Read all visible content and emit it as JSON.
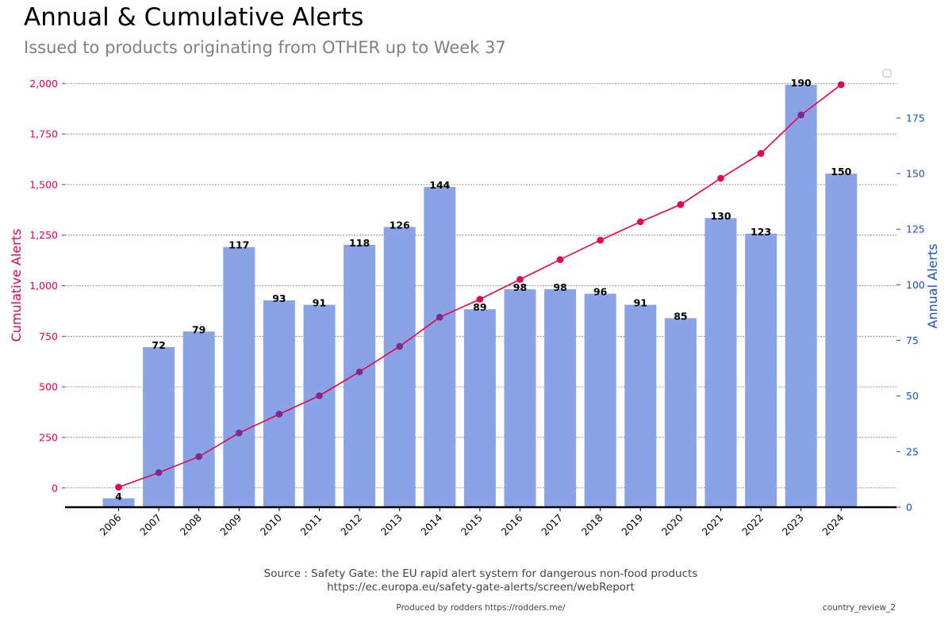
{
  "header": {
    "title": "Annual & Cumulative Alerts",
    "subtitle": "Issued to products originating from OTHER up to Week 37"
  },
  "footer": {
    "source_line1": "Source : Safety Gate: the EU rapid alert system for dangerous non-food products",
    "source_line2": "https://ec.europa.eu/safety-gate-alerts/screen/webReport",
    "produced_by": "Produced by rodders https://rodders.me/",
    "report_id": "country_review_2"
  },
  "colors": {
    "bar": "#8aa2e6",
    "cumulative": "#e8004c",
    "cumulative_early": "#7b2a8f",
    "annual_axis": "#1a4fc4",
    "grid": "#777777"
  },
  "chart_data": {
    "type": "bar+line",
    "categories": [
      "2006",
      "2007",
      "2008",
      "2009",
      "2010",
      "2011",
      "2012",
      "2013",
      "2014",
      "2015",
      "2016",
      "2017",
      "2018",
      "2019",
      "2020",
      "2021",
      "2022",
      "2023",
      "2024"
    ],
    "series": [
      {
        "name": "Annual Alerts",
        "type": "bar",
        "axis": "right",
        "values": [
          4,
          72,
          79,
          117,
          93,
          91,
          118,
          126,
          144,
          89,
          98,
          98,
          96,
          91,
          85,
          130,
          123,
          190,
          150
        ]
      },
      {
        "name": "Cumulative Alerts",
        "type": "line",
        "axis": "left",
        "values": [
          4,
          76,
          155,
          272,
          365,
          456,
          574,
          700,
          844,
          933,
          1031,
          1129,
          1225,
          1316,
          1401,
          1531,
          1654,
          1844,
          1994
        ]
      }
    ],
    "left_axis": {
      "label": "Cumulative Alerts",
      "ylim": [
        -95,
        2005
      ],
      "ticks": [
        0,
        250,
        500,
        750,
        1000,
        1250,
        1500,
        1750,
        2000
      ],
      "tick_labels": [
        "0",
        "250",
        "500",
        "750",
        "1,000",
        "1,250",
        "1,500",
        "1,750",
        "2,000"
      ]
    },
    "right_axis": {
      "label": "Annual Alerts",
      "ylim": [
        0,
        191
      ],
      "ticks": [
        0,
        25,
        50,
        75,
        100,
        125,
        150,
        175
      ],
      "tick_labels": [
        "0",
        "25",
        "50",
        "75",
        "100",
        "125",
        "150",
        "175"
      ]
    },
    "grid": true,
    "legend": "top-right"
  }
}
